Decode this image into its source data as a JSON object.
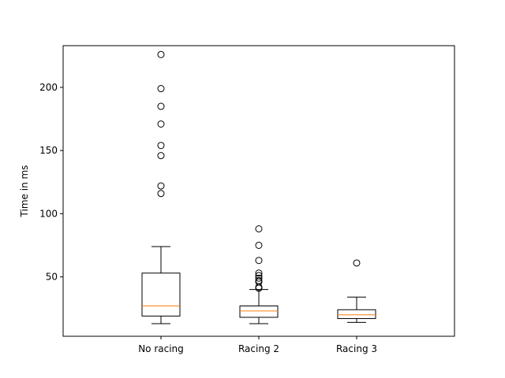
{
  "chart_data": {
    "type": "box",
    "title": "",
    "xlabel": "",
    "ylabel": "Time in ms",
    "ylim": [
      3,
      233
    ],
    "yticks": [
      50,
      100,
      150,
      200
    ],
    "grid": false,
    "colors": {
      "box": "#000000",
      "median": "#ff7f0e"
    },
    "categories": [
      "No racing",
      "Racing 2",
      "Racing 3"
    ],
    "boxes": [
      {
        "label": "No racing",
        "whisker_low": 13,
        "q1": 19,
        "median": 27,
        "q3": 53,
        "whisker_high": 74,
        "outliers": [
          116,
          122,
          146,
          154,
          171,
          185,
          199,
          226
        ]
      },
      {
        "label": "Racing 2",
        "whisker_low": 13,
        "q1": 18,
        "median": 23,
        "q3": 27,
        "whisker_high": 40,
        "outliers": [
          41,
          42,
          46,
          47,
          49,
          51,
          53,
          63,
          75,
          88
        ]
      },
      {
        "label": "Racing 3",
        "whisker_low": 14,
        "q1": 17,
        "median": 20,
        "q3": 24,
        "whisker_high": 34,
        "outliers": [
          61
        ]
      }
    ]
  }
}
